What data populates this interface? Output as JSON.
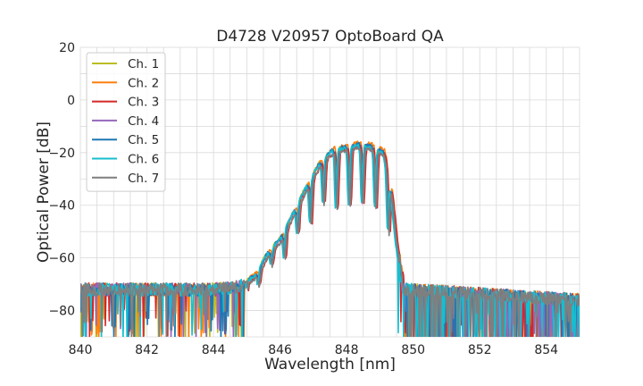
{
  "chart_data": {
    "type": "line",
    "title": "D4728 V20957 OptoBoard QA",
    "xlabel": "Wavelength [nm]",
    "ylabel": "Optical Power [dB]",
    "xlim": [
      840,
      855
    ],
    "ylim": [
      -90,
      20
    ],
    "xticks": [
      840,
      842,
      844,
      846,
      848,
      850,
      852,
      854
    ],
    "yticks": [
      -80,
      -60,
      -40,
      -20,
      0,
      20
    ],
    "grid": true,
    "legend_position": "top-left",
    "series": [
      {
        "name": "Ch. 1",
        "color": "#bcbd22",
        "peak_offset_nm": -0.02,
        "peak_shift_db": 0.3,
        "seed": 11
      },
      {
        "name": "Ch. 2",
        "color": "#ff7f0e",
        "peak_offset_nm": 0.04,
        "peak_shift_db": 1.0,
        "seed": 23
      },
      {
        "name": "Ch. 3",
        "color": "#d62728",
        "peak_offset_nm": 0.05,
        "peak_shift_db": -0.6,
        "seed": 37
      },
      {
        "name": "Ch. 4",
        "color": "#9467bd",
        "peak_offset_nm": -0.01,
        "peak_shift_db": 0.0,
        "seed": 41
      },
      {
        "name": "Ch. 5",
        "color": "#1f77b4",
        "peak_offset_nm": 0.0,
        "peak_shift_db": 0.4,
        "seed": 53
      },
      {
        "name": "Ch. 6",
        "color": "#17becf",
        "peak_offset_nm": -0.03,
        "peak_shift_db": -0.3,
        "seed": 67
      },
      {
        "name": "Ch. 7",
        "color": "#7f7f7f",
        "peak_offset_nm": 0.02,
        "peak_shift_db": -1.2,
        "seed": 79
      }
    ],
    "spectrum_envelope": {
      "x": [
        840.0,
        844.0,
        844.8,
        845.3,
        845.6,
        846.0,
        846.4,
        846.8,
        847.2,
        847.6,
        848.0,
        848.4,
        848.8,
        849.1,
        849.3,
        849.5,
        849.7,
        855.0
      ],
      "y": [
        -72,
        -72,
        -71,
        -66,
        -59,
        -53,
        -43,
        -33,
        -24,
        -19,
        -18,
        -17,
        -18,
        -20,
        -30,
        -55,
        -72,
        -76
      ]
    },
    "noise_floor_db": -73
  }
}
